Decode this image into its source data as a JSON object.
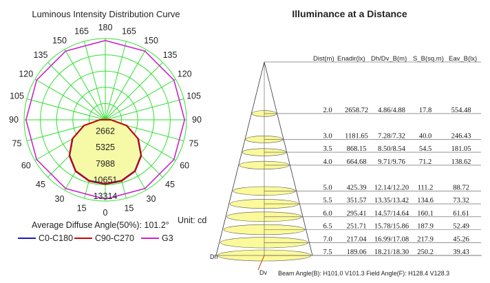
{
  "chart_data": [
    {
      "type": "polar",
      "title": "Luminous Intensity Distribution Curve",
      "angle_labels": {
        "top": "180",
        "left": [
          "165",
          "150",
          "135",
          "120",
          "105",
          "90",
          "75",
          "60",
          "45",
          "30",
          "15"
        ],
        "right": [
          "165",
          "150",
          "135",
          "120",
          "105",
          "90",
          "75",
          "60",
          "45",
          "30",
          "15"
        ],
        "bottom": "0"
      },
      "radial_ticks": [
        "2662",
        "5325",
        "7988",
        "10651",
        "13314"
      ],
      "r_max": 13314,
      "unit": "Unit: cd",
      "average_diffuse_angle": "Average Diffuse Angle(50%): 101.2°",
      "series": [
        {
          "name": "C0-C180",
          "color": "#1a1acc",
          "angles": [
            0,
            15,
            30,
            45,
            60,
            75,
            90,
            105,
            120,
            135,
            150,
            165,
            180
          ],
          "values": [
            10450,
            10280,
            9650,
            8250,
            6150,
            3550,
            900,
            50,
            10,
            5,
            0,
            0,
            0
          ]
        },
        {
          "name": "C90-C270",
          "color": "#cc0000",
          "angles": [
            0,
            15,
            30,
            45,
            60,
            75,
            90,
            105,
            120,
            135,
            150,
            165,
            180
          ],
          "values": [
            10550,
            10380,
            9750,
            8350,
            6250,
            3650,
            920,
            50,
            10,
            5,
            0,
            0,
            0
          ]
        },
        {
          "name": "G3",
          "color": "#cc22cc",
          "angles": [
            0,
            30,
            60,
            90,
            120,
            150,
            180
          ],
          "values": [
            13000,
            13000,
            13000,
            13000,
            13000,
            13000,
            13000
          ]
        }
      ]
    },
    {
      "type": "table",
      "title": "Illuminance at a Distance",
      "columns": [
        "Dist(m)",
        "Enadir(lx)",
        "Dh/Dv_B(m)",
        "S_B(sq.m)",
        "Eav_B(lx)"
      ],
      "rows": [
        [
          "2.0",
          "2658.72",
          "4.86/4.88",
          "17.8",
          "554.48"
        ],
        [
          "3.0",
          "1181.65",
          "7.28/7.32",
          "40.0",
          "246.43"
        ],
        [
          "3.5",
          "868.15",
          "8.50/8.54",
          "54.5",
          "181.05"
        ],
        [
          "4.0",
          "664.68",
          "9.71/9.76",
          "71.2",
          "138.62"
        ],
        [
          "5.0",
          "425.39",
          "12.14/12.20",
          "111.2",
          "88.72"
        ],
        [
          "5.5",
          "351.57",
          "13.35/13.42",
          "134.6",
          "73.32"
        ],
        [
          "6.0",
          "295.41",
          "14.57/14.64",
          "160.1",
          "61.61"
        ],
        [
          "6.5",
          "251.71",
          "15.78/15.86",
          "187.9",
          "52.49"
        ],
        [
          "7.0",
          "217.04",
          "16.99/17.08",
          "217.9",
          "45.26"
        ],
        [
          "7.5",
          "189.06",
          "18.21/18.30",
          "250.2",
          "39.43"
        ]
      ],
      "dh_label": "Dh",
      "dv_label": "Dv",
      "footer": "Beam Angle(B): H101.0 V101.3  Field Angle(F): H128.4 V128.3",
      "cone_fill": "#fbf99a"
    }
  ]
}
